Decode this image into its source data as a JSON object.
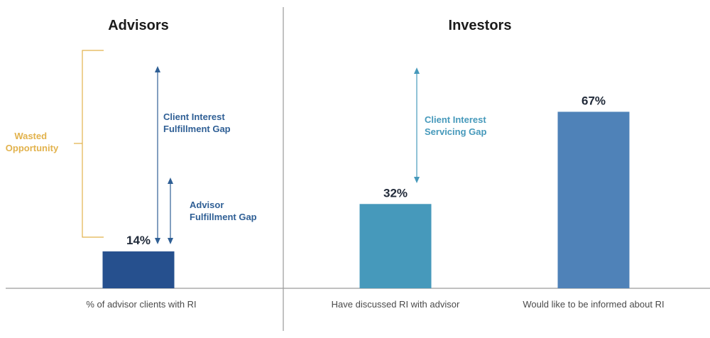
{
  "chart_data": {
    "type": "bar",
    "panels": [
      {
        "title": "Advisors",
        "categories": [
          "% of advisor clients with RI"
        ],
        "values": [
          14
        ],
        "labels": [
          "14%"
        ],
        "colors": [
          "#26508e"
        ]
      },
      {
        "title": "Investors",
        "categories": [
          "Have discussed RI with advisor",
          "Would like to be informed about RI"
        ],
        "values": [
          32,
          67
        ],
        "labels": [
          "32%",
          "67%"
        ],
        "colors": [
          "#4699bb",
          "#4f82b8"
        ]
      }
    ],
    "annotations": {
      "wasted_opportunity": {
        "lines": [
          "Wasted",
          "Opportunity"
        ],
        "color": "#e2b24c"
      },
      "client_interest_fulfillment_gap": {
        "lines": [
          "Client Interest",
          "Fulfillment Gap"
        ],
        "color": "#2f5f95"
      },
      "advisor_fulfillment_gap": {
        "lines": [
          "Advisor",
          "Fulfillment Gap"
        ],
        "color": "#2f5f95"
      },
      "client_interest_servicing_gap": {
        "lines": [
          "Client Interest",
          "Servicing Gap"
        ],
        "color": "#4699bb"
      }
    },
    "ylim": [
      0,
      100
    ],
    "grid": false,
    "axis_color": "#9a9a9a"
  }
}
